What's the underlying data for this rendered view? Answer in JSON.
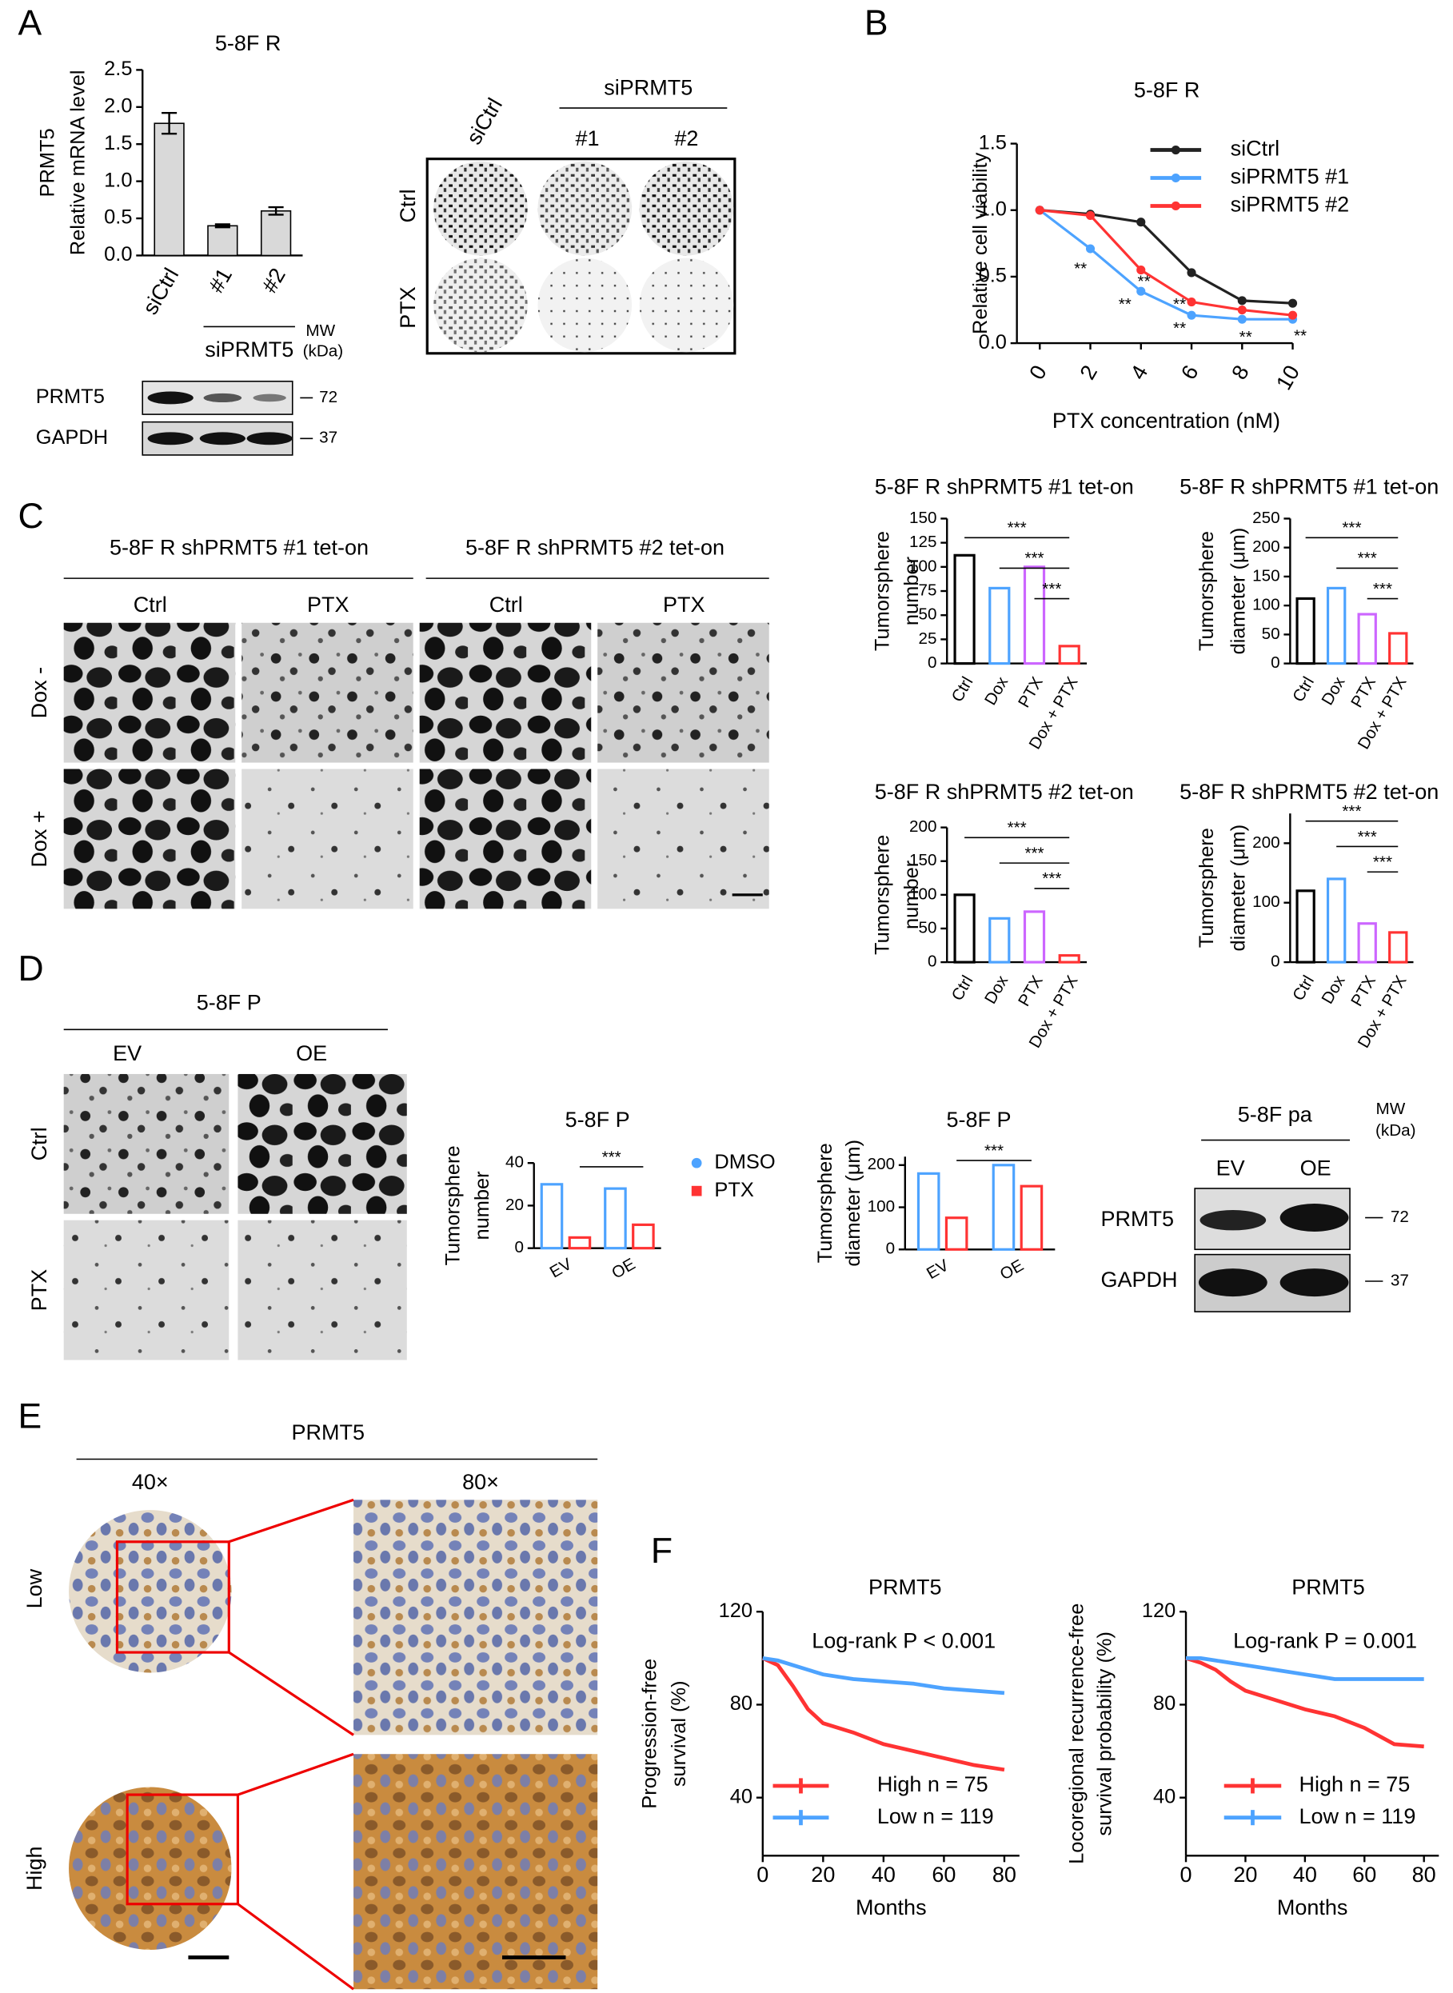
{
  "labels": {
    "panels": [
      "A",
      "B",
      "C",
      "D",
      "E",
      "F"
    ],
    "a_blot": {
      "mw": "MW",
      "kda": "(kDa)",
      "rows": [
        "PRMT5",
        "GAPDH"
      ],
      "markers": [
        72,
        37
      ]
    },
    "a_colony": {
      "lanes": [
        "siCtrl",
        "#1",
        "#2"
      ],
      "group": "siPRMT5",
      "rows": [
        "Ctrl",
        "PTX"
      ]
    },
    "c_images": {
      "groups": [
        "5-8F R shPRMT5  #1 tet-on",
        "5-8F R shPRMT5  #2 tet-on"
      ],
      "cols": [
        "Ctrl",
        "PTX",
        "Ctrl",
        "PTX"
      ],
      "rows": [
        "Dox -",
        "Dox +"
      ]
    },
    "d_images": {
      "title": "5-8F P",
      "cols": [
        "EV",
        "OE"
      ],
      "rows": [
        "Ctrl",
        "PTX"
      ]
    },
    "d_blot": {
      "title": "5-8F pa",
      "lanes": [
        "EV",
        "OE"
      ],
      "mw": "MW",
      "kda": "(kDa)",
      "rows": [
        "PRMT5",
        "GAPDH"
      ],
      "markers": [
        72,
        37
      ]
    },
    "e_images": {
      "title": "PRMT5",
      "cols": [
        "40×",
        "80×"
      ],
      "rows": [
        "Low",
        "High"
      ]
    }
  },
  "chart_data": [
    {
      "type": "bar",
      "title": "5-8F R",
      "ylabel": [
        "PRMT5",
        "Relative mRNA level"
      ],
      "categories": [
        "siCtrl",
        "#1",
        "#2"
      ],
      "group_label": "siPRMT5",
      "values": [
        1.78,
        0.4,
        0.6
      ],
      "errors": [
        0.14,
        0.02,
        0.05
      ],
      "color": "#d9d9d9",
      "ylim": [
        0,
        2.5
      ],
      "yticks": [
        {
          "value": 0,
          "label": "0.0"
        },
        0.5,
        {
          "value": 1,
          "label": "1.0"
        },
        1.5,
        {
          "value": 2,
          "label": "2.0"
        },
        2.5
      ]
    },
    {
      "type": "line",
      "title": "5-8F  R",
      "xlabel": "PTX concentration (nM)",
      "ylabel": [
        "Relative cell viability"
      ],
      "markers": true,
      "x": [
        0,
        2,
        4,
        6,
        8,
        10
      ],
      "xlim": [
        0,
        10
      ],
      "xticks": [
        0,
        2,
        4,
        6,
        8,
        10
      ],
      "ylim": [
        0,
        1.5
      ],
      "yticks": [
        {
          "value": 0,
          "label": "0.0"
        },
        0.5,
        {
          "value": 1,
          "label": "1.0"
        },
        1.5
      ],
      "series": [
        {
          "name": "siCtrl",
          "color": "#222222",
          "values": [
            1,
            0.97,
            0.91,
            0.53,
            0.32,
            0.3
          ]
        },
        {
          "name": "siPRMT5 #1",
          "color": "#4da3ff",
          "values": [
            1,
            0.71,
            0.39,
            0.21,
            0.18,
            0.18
          ]
        },
        {
          "name": "siPRMT5 #2",
          "color": "#ff3333",
          "values": [
            1,
            0.96,
            0.55,
            0.31,
            0.25,
            0.21
          ]
        }
      ],
      "legend": "upper right",
      "annotations": [
        "**",
        "**",
        "**",
        "**",
        "**",
        "**",
        "**"
      ]
    },
    {
      "type": "bar",
      "title": "5-8F R shPRMT5 #1  tet-on",
      "ylabel": [
        "Tumorsphere",
        "number"
      ],
      "categories": [
        "Ctrl",
        "Dox",
        "PTX",
        "Dox + PTX"
      ],
      "values": [
        112,
        78,
        100,
        18
      ],
      "colors": [
        "#000000",
        "#4da3ff",
        "#cc66ff",
        "#ff3333"
      ],
      "ylim": [
        0,
        150
      ],
      "yticks": [
        0,
        25,
        50,
        75,
        100,
        125,
        150
      ],
      "significance": [
        "***",
        "***",
        "***"
      ]
    },
    {
      "type": "bar",
      "title": "5-8F R shPRMT5 #1 tet-on",
      "ylabel": [
        "Tumorsphere",
        "diameter (μm)"
      ],
      "categories": [
        "Ctrl",
        "Dox",
        "PTX",
        "Dox + PTX"
      ],
      "values": [
        112,
        130,
        85,
        52
      ],
      "colors": [
        "#000000",
        "#4da3ff",
        "#cc66ff",
        "#ff3333"
      ],
      "ylim": [
        0,
        250
      ],
      "yticks": [
        0,
        50,
        100,
        150,
        200,
        250
      ],
      "significance": [
        "***",
        "***",
        "***"
      ]
    },
    {
      "type": "bar",
      "title": "5-8F R shPRMT5 #2 tet-on",
      "ylabel": [
        "Tumorsphere",
        "number"
      ],
      "categories": [
        "Ctrl",
        "Dox",
        "PTX",
        "Dox + PTX"
      ],
      "values": [
        100,
        65,
        75,
        10
      ],
      "colors": [
        "#000000",
        "#4da3ff",
        "#cc66ff",
        "#ff3333"
      ],
      "ylim": [
        0,
        200
      ],
      "yticks": [
        0,
        50,
        100,
        150,
        200
      ],
      "significance": [
        "***",
        "***",
        "***"
      ]
    },
    {
      "type": "bar",
      "title": "5-8F R shPRMT5 #2 tet-on",
      "ylabel": [
        "Tumorsphere",
        "diameter (μm)"
      ],
      "categories": [
        "Ctrl",
        "Dox",
        "PTX",
        "Dox + PTX"
      ],
      "values": [
        120,
        140,
        65,
        50
      ],
      "colors": [
        "#000000",
        "#4da3ff",
        "#cc66ff",
        "#ff3333"
      ],
      "ylim": [
        0,
        250
      ],
      "yticks": [
        0,
        100,
        200
      ],
      "significance": [
        "***",
        "***",
        "***"
      ]
    },
    {
      "type": "grouped",
      "title": "5-8F P",
      "ylabel": [
        "Tumorsphere",
        "number"
      ],
      "categories": [
        "EV",
        "OE"
      ],
      "series": [
        {
          "name": "DMSO",
          "color": "#4da3ff",
          "values": [
            30,
            28
          ]
        },
        {
          "name": "PTX",
          "color": "#ff3333",
          "values": [
            5,
            11
          ]
        }
      ],
      "ylim": [
        0,
        40
      ],
      "yticks": [
        0,
        20,
        40
      ],
      "legend": "right",
      "significance": [
        "***"
      ]
    },
    {
      "type": "grouped",
      "title": "5-8F P",
      "ylabel": [
        "Tumorsphere",
        "diameter (μm)"
      ],
      "categories": [
        "EV",
        "OE"
      ],
      "series": [
        {
          "name": "DMSO",
          "color": "#4da3ff",
          "values": [
            180,
            200
          ]
        },
        {
          "name": "PTX",
          "color": "#ff3333",
          "values": [
            75,
            150
          ]
        }
      ],
      "ylim": [
        0,
        220
      ],
      "yticks": [
        0,
        100,
        200
      ],
      "significance": [
        "***"
      ]
    },
    {
      "type": "line",
      "title": "PRMT5",
      "annotation": "Log-rank P < 0.001",
      "xlabel": "Months",
      "ylabel": [
        "Progression-free",
        "survival (%)"
      ],
      "x": [
        0,
        5,
        10,
        15,
        20,
        30,
        40,
        50,
        60,
        70,
        80
      ],
      "xlim": [
        0,
        85
      ],
      "xticks": [
        0,
        20,
        40,
        60,
        80
      ],
      "ylim": [
        15,
        120
      ],
      "yticks": [
        40,
        80,
        120
      ],
      "series": [
        {
          "name": "High n = 75",
          "color": "#ff3333",
          "values": [
            100,
            97,
            88,
            78,
            72,
            68,
            63,
            60,
            57,
            54,
            52
          ]
        },
        {
          "name": "Low n = 119",
          "color": "#4da3ff",
          "values": [
            100,
            99,
            97,
            95,
            93,
            91,
            90,
            89,
            87,
            86,
            85
          ]
        }
      ],
      "legend": "lower left"
    },
    {
      "type": "line",
      "title": "PRMT5",
      "annotation": "Log-rank P = 0.001",
      "xlabel": "Months",
      "ylabel": [
        "Locoregional recurrence-free",
        "survival probability (%)"
      ],
      "x": [
        0,
        5,
        10,
        15,
        20,
        30,
        40,
        50,
        60,
        70,
        80
      ],
      "xlim": [
        0,
        85
      ],
      "xticks": [
        0,
        20,
        40,
        60,
        80
      ],
      "ylim": [
        15,
        120
      ],
      "yticks": [
        40,
        80,
        120
      ],
      "series": [
        {
          "name": "High n = 75",
          "color": "#ff3333",
          "values": [
            100,
            98,
            95,
            90,
            86,
            82,
            78,
            75,
            70,
            63,
            62
          ]
        },
        {
          "name": "Low n = 119",
          "color": "#4da3ff",
          "values": [
            100,
            100,
            99,
            98,
            97,
            95,
            93,
            91,
            91,
            91,
            91
          ]
        }
      ],
      "legend": "lower left"
    }
  ]
}
